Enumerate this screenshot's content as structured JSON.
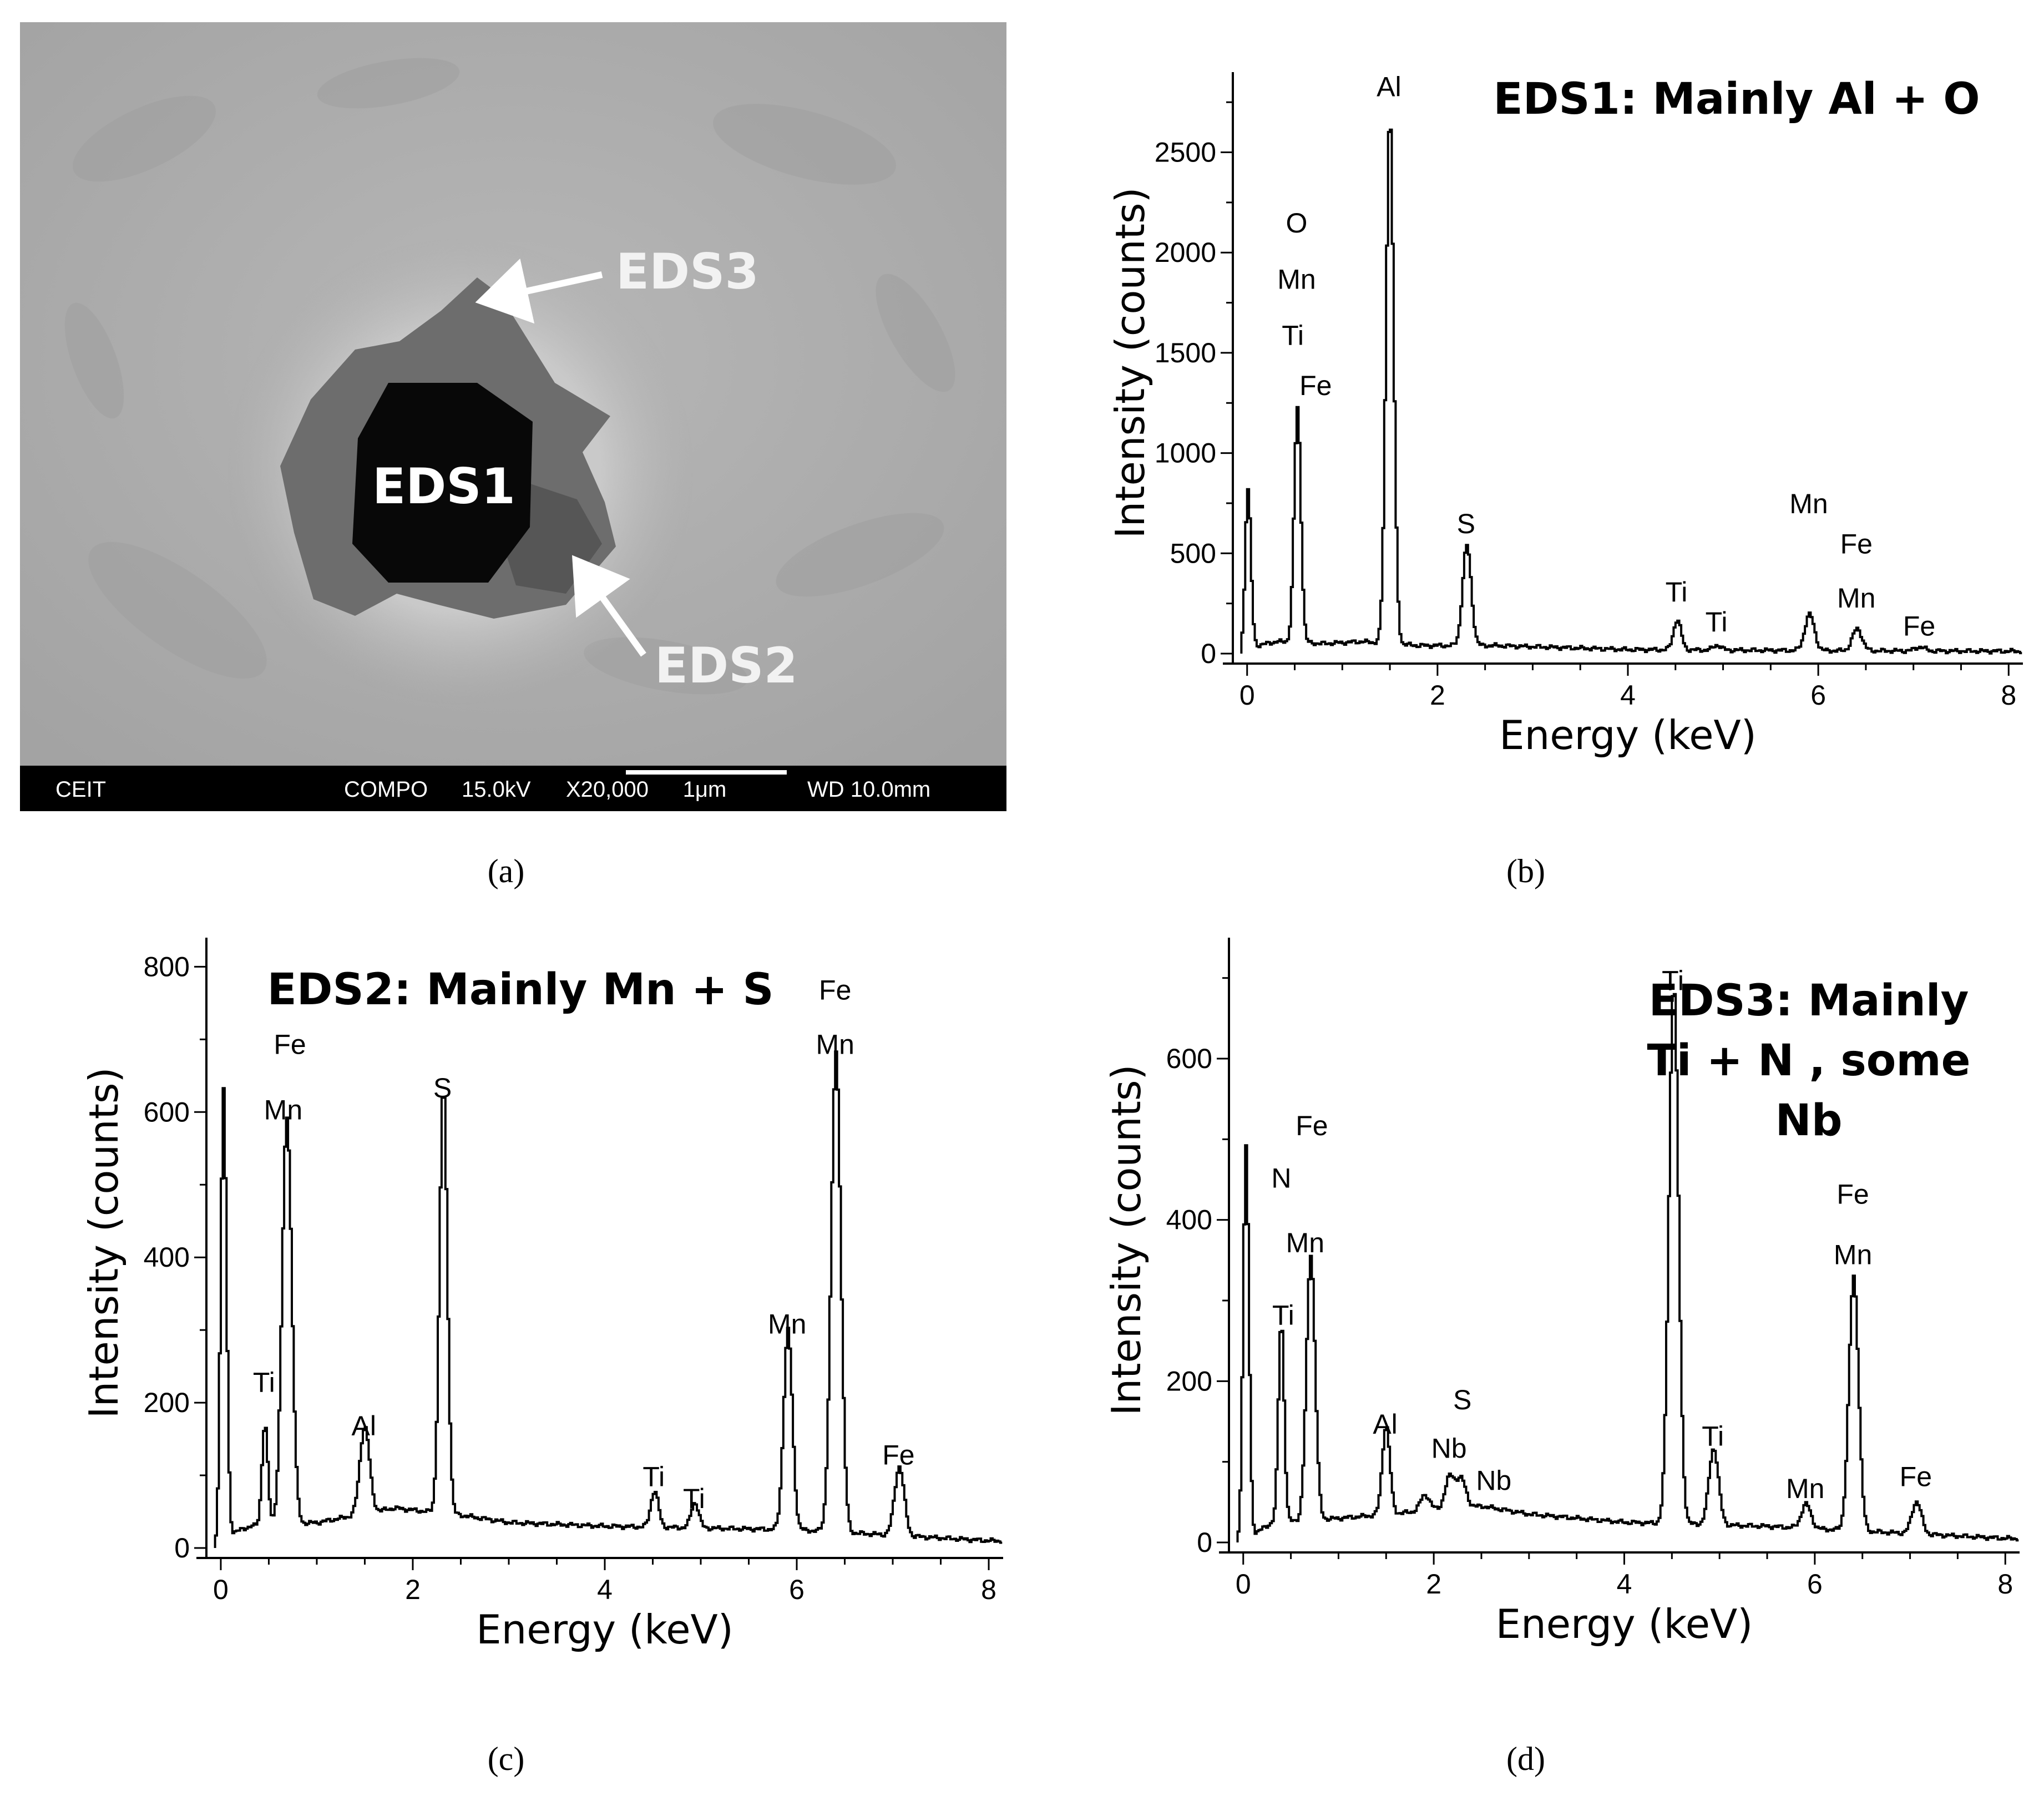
{
  "panel_a": {
    "label": "(a)",
    "sem_labels": {
      "eds1": "EDS1",
      "eds2": "EDS2",
      "eds3": "EDS3"
    },
    "info_bar": {
      "lab": "CEIT",
      "mode": "COMPO",
      "voltage": "15.0kV",
      "magnification": "X20,000",
      "scale": "1μm",
      "working_distance": "WD 10.0mm"
    }
  },
  "chart_data": [
    {
      "panel": "(b)",
      "type": "line",
      "title": "EDS1: Mainly Al + O",
      "xlabel": "Energy (keV)",
      "ylabel": "Intensity (counts)",
      "xlim": [
        -0.15,
        8.15
      ],
      "ylim": [
        0,
        2900
      ],
      "xticks": [
        0,
        2,
        4,
        6,
        8
      ],
      "yticks": [
        0,
        500,
        1000,
        1500,
        2000,
        2500
      ],
      "baseline": [
        [
          0.1,
          40
        ],
        [
          0.3,
          60
        ],
        [
          0.8,
          50
        ],
        [
          1.2,
          60
        ],
        [
          1.8,
          40
        ],
        [
          2.6,
          40
        ],
        [
          4,
          20
        ],
        [
          6,
          15
        ],
        [
          8,
          12
        ]
      ],
      "peaks": [
        [
          0.0,
          780,
          0.03
        ],
        [
          0.52,
          1170,
          0.035
        ],
        [
          1.49,
          2640,
          0.04
        ],
        [
          2.3,
          500,
          0.045
        ],
        [
          4.51,
          150,
          0.04
        ],
        [
          4.93,
          25,
          0.04
        ],
        [
          5.9,
          180,
          0.05
        ],
        [
          6.4,
          110,
          0.05
        ],
        [
          7.06,
          20,
          0.05
        ]
      ],
      "annotations": [
        {
          "text": "O",
          "x": 0.52,
          "y": 2100
        },
        {
          "text": "Mn",
          "x": 0.52,
          "y": 1820
        },
        {
          "text": "Ti",
          "x": 0.48,
          "y": 1540
        },
        {
          "text": "Fe",
          "x": 0.72,
          "y": 1290
        },
        {
          "text": "Al",
          "x": 1.49,
          "y": 2780
        },
        {
          "text": "S",
          "x": 2.3,
          "y": 600
        },
        {
          "text": "Ti",
          "x": 4.51,
          "y": 260
        },
        {
          "text": "Ti",
          "x": 4.93,
          "y": 110
        },
        {
          "text": "Mn",
          "x": 5.9,
          "y": 700
        },
        {
          "text": "Fe",
          "x": 6.4,
          "y": 500
        },
        {
          "text": "Mn",
          "x": 6.4,
          "y": 230
        },
        {
          "text": "Fe",
          "x": 7.06,
          "y": 90
        }
      ]
    },
    {
      "panel": "(c)",
      "type": "line",
      "title": "EDS2: Mainly Mn + S",
      "xlabel": "Energy (keV)",
      "ylabel": "Intensity (counts)",
      "xlim": [
        -0.15,
        8.15
      ],
      "ylim": [
        0,
        840
      ],
      "xticks": [
        0,
        2,
        4,
        6,
        8
      ],
      "yticks": [
        0,
        200,
        400,
        600,
        800
      ],
      "baseline": [
        [
          0.1,
          20
        ],
        [
          0.3,
          30
        ],
        [
          1.0,
          35
        ],
        [
          1.8,
          55
        ],
        [
          2.5,
          45
        ],
        [
          3.0,
          35
        ],
        [
          4.0,
          30
        ],
        [
          6.0,
          25
        ],
        [
          8.0,
          10
        ]
      ],
      "peaks": [
        [
          0.02,
          610,
          0.03
        ],
        [
          0.68,
          560,
          0.05
        ],
        [
          0.45,
          140,
          0.03
        ],
        [
          1.49,
          120,
          0.05
        ],
        [
          2.31,
          590,
          0.04
        ],
        [
          4.51,
          50,
          0.04
        ],
        [
          4.93,
          35,
          0.04
        ],
        [
          5.9,
          275,
          0.045
        ],
        [
          6.4,
          660,
          0.05
        ],
        [
          7.06,
          95,
          0.05
        ]
      ],
      "annotations": [
        {
          "text": "Fe",
          "x": 0.72,
          "y": 680
        },
        {
          "text": "Mn",
          "x": 0.65,
          "y": 590
        },
        {
          "text": "Ti",
          "x": 0.45,
          "y": 215
        },
        {
          "text": "Al",
          "x": 1.49,
          "y": 155
        },
        {
          "text": "S",
          "x": 2.31,
          "y": 620
        },
        {
          "text": "Ti",
          "x": 4.51,
          "y": 85
        },
        {
          "text": "Ti",
          "x": 4.93,
          "y": 55
        },
        {
          "text": "Mn",
          "x": 5.9,
          "y": 295
        },
        {
          "text": "Fe",
          "x": 6.4,
          "y": 755
        },
        {
          "text": "Mn",
          "x": 6.4,
          "y": 680
        },
        {
          "text": "Fe",
          "x": 7.06,
          "y": 115
        }
      ]
    },
    {
      "panel": "(d)",
      "type": "line",
      "title": "EDS3: Mainly Ti + N , some Nb",
      "xlabel": "Energy (keV)",
      "ylabel": "Intensity (counts)",
      "xlim": [
        -0.15,
        8.15
      ],
      "ylim": [
        0,
        750
      ],
      "xticks": [
        0,
        2,
        4,
        6,
        8
      ],
      "yticks": [
        0,
        200,
        400,
        600
      ],
      "baseline": [
        [
          0.1,
          10
        ],
        [
          0.3,
          25
        ],
        [
          1.0,
          30
        ],
        [
          1.5,
          35
        ],
        [
          2.5,
          45
        ],
        [
          3.0,
          35
        ],
        [
          4.0,
          25
        ],
        [
          5.5,
          20
        ],
        [
          8.0,
          5
        ]
      ],
      "peaks": [
        [
          0.02,
          480,
          0.03
        ],
        [
          0.39,
          250,
          0.03
        ],
        [
          0.7,
          330,
          0.045
        ],
        [
          1.49,
          110,
          0.04
        ],
        [
          1.9,
          20,
          0.05
        ],
        [
          2.16,
          40,
          0.05
        ],
        [
          2.28,
          35,
          0.05
        ],
        [
          4.51,
          670,
          0.05
        ],
        [
          4.93,
          95,
          0.05
        ],
        [
          5.9,
          30,
          0.05
        ],
        [
          6.4,
          315,
          0.05
        ],
        [
          7.06,
          40,
          0.05
        ]
      ],
      "annotations": [
        {
          "text": "Fe",
          "x": 0.72,
          "y": 505
        },
        {
          "text": "N",
          "x": 0.4,
          "y": 440
        },
        {
          "text": "Mn",
          "x": 0.65,
          "y": 360
        },
        {
          "text": "Ti",
          "x": 0.42,
          "y": 270
        },
        {
          "text": "Al",
          "x": 1.49,
          "y": 135
        },
        {
          "text": "S",
          "x": 2.3,
          "y": 165
        },
        {
          "text": "Nb",
          "x": 2.16,
          "y": 105
        },
        {
          "text": "Nb",
          "x": 2.63,
          "y": 65
        },
        {
          "text": "Ti",
          "x": 4.51,
          "y": 685
        },
        {
          "text": "Ti",
          "x": 4.93,
          "y": 120
        },
        {
          "text": "Mn",
          "x": 5.9,
          "y": 55
        },
        {
          "text": "Fe",
          "x": 6.4,
          "y": 420
        },
        {
          "text": "Mn",
          "x": 6.4,
          "y": 345
        },
        {
          "text": "Fe",
          "x": 7.06,
          "y": 70
        }
      ]
    }
  ]
}
